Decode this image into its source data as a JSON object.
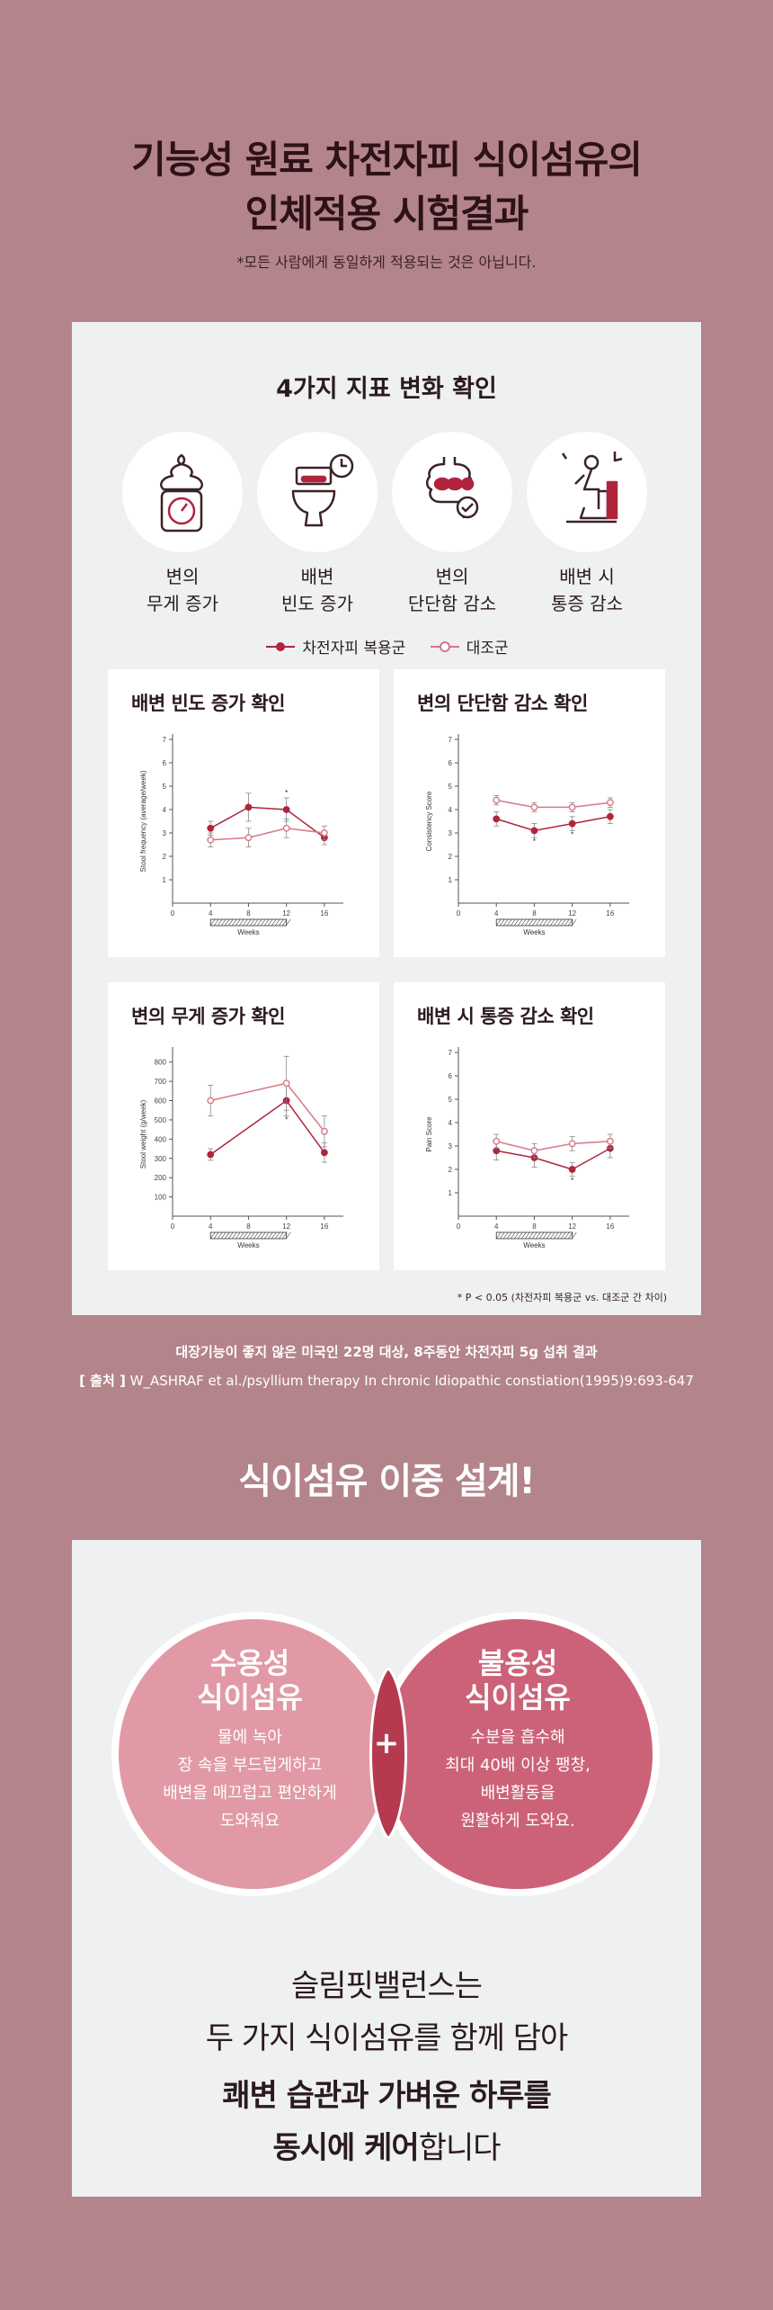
{
  "header": {
    "title_line1": "기능성 원료 차전자피 식이섬유의",
    "title_line2": "인체적용 시험결과",
    "note": "*모든 사람에게 동일하게 적용되는 것은 아닙니다."
  },
  "indicators": {
    "title": "4가지 지표 변화 확인",
    "items": [
      {
        "label": "변의\n무게 증가",
        "icon": "stool-weight-icon"
      },
      {
        "label": "배변\n빈도 증가",
        "icon": "toilet-clock-icon"
      },
      {
        "label": "변의\n단단함 감소",
        "icon": "intestine-check-icon"
      },
      {
        "label": "배변 시\n통증 감소",
        "icon": "person-toilet-icon"
      }
    ],
    "legend": {
      "treatment": "차전자피 복용군",
      "control": "대조군"
    },
    "colors": {
      "treatment": "#b0243c",
      "control": "#d77887"
    }
  },
  "chart_data": [
    {
      "type": "line",
      "title": "배변 빈도 증가 확인",
      "ylabel": "Stool frequency (average/week)",
      "xlabel": "Weeks",
      "x": [
        4,
        8,
        12,
        16
      ],
      "xticks": [
        0,
        4,
        8,
        12,
        16
      ],
      "yticks": [
        1,
        2,
        3,
        4,
        5,
        6,
        7
      ],
      "ylim": [
        0,
        7
      ],
      "xlim": [
        0,
        18
      ],
      "series": [
        {
          "name": "차전자피 복용군",
          "values": [
            3.2,
            4.1,
            4.0,
            2.8
          ],
          "err": [
            0.3,
            0.6,
            0.5,
            0.3
          ]
        },
        {
          "name": "대조군",
          "values": [
            2.7,
            2.8,
            3.2,
            3.0
          ],
          "err": [
            0.3,
            0.4,
            0.4,
            0.3
          ]
        }
      ],
      "significant_at": [
        12
      ]
    },
    {
      "type": "line",
      "title": "변의 단단함 감소 확인",
      "ylabel": "Consistency Score",
      "xlabel": "Weeks",
      "x": [
        4,
        8,
        12,
        16
      ],
      "xticks": [
        0,
        4,
        8,
        12,
        16
      ],
      "yticks": [
        1,
        2,
        3,
        4,
        5,
        6,
        7
      ],
      "ylim": [
        0,
        7
      ],
      "xlim": [
        0,
        18
      ],
      "series": [
        {
          "name": "차전자피 복용군",
          "values": [
            3.6,
            3.1,
            3.4,
            3.7
          ],
          "err": [
            0.3,
            0.3,
            0.3,
            0.3
          ]
        },
        {
          "name": "대조군",
          "values": [
            4.4,
            4.1,
            4.1,
            4.3
          ],
          "err": [
            0.2,
            0.2,
            0.2,
            0.2
          ]
        }
      ],
      "significant_at": [
        8,
        12
      ]
    },
    {
      "type": "line",
      "title": "변의 무게 증가 확인",
      "ylabel": "Stool weight (g/week)",
      "xlabel": "Weeks",
      "x": [
        4,
        12,
        16
      ],
      "xticks": [
        0,
        4,
        8,
        12,
        16
      ],
      "yticks": [
        100,
        200,
        300,
        400,
        500,
        600,
        700,
        800
      ],
      "ylim": [
        0,
        850
      ],
      "xlim": [
        0,
        18
      ],
      "series": [
        {
          "name": "차전자피 복용군",
          "values": [
            320,
            600,
            330
          ],
          "err": [
            30,
            80,
            50
          ]
        },
        {
          "name": "대조군",
          "values": [
            600,
            690,
            440
          ],
          "err": [
            80,
            140,
            80
          ]
        }
      ],
      "significant_at": [
        12
      ]
    },
    {
      "type": "line",
      "title": "배변 시 통증 감소 확인",
      "ylabel": "Pain Score",
      "xlabel": "Weeks",
      "x": [
        4,
        8,
        12,
        16
      ],
      "xticks": [
        0,
        4,
        8,
        12,
        16
      ],
      "yticks": [
        1,
        2,
        3,
        4,
        5,
        6,
        7
      ],
      "ylim": [
        0,
        7
      ],
      "xlim": [
        0,
        18
      ],
      "series": [
        {
          "name": "차전자피 복용군",
          "values": [
            2.8,
            2.5,
            2.0,
            2.9
          ],
          "err": [
            0.4,
            0.4,
            0.3,
            0.4
          ]
        },
        {
          "name": "대조군",
          "values": [
            3.2,
            2.8,
            3.1,
            3.2
          ],
          "err": [
            0.3,
            0.3,
            0.3,
            0.3
          ]
        }
      ],
      "significant_at": [
        12
      ]
    }
  ],
  "p_note": "* P < 0.05 (차전자피 복용군 vs. 대조군 간 차이)",
  "study": {
    "line1": "대장기능이 좋지 않은 미국인 22명 대상, 8주동안 차전자피 5g 섭취 결과",
    "source_label": "[ 출처 ]",
    "source_text": " W_ASHRAF et al./psyllium therapy In chronic Idiopathic constiation(1995)9:693-647"
  },
  "fiber": {
    "heading": "식이섬유 이중 설계!",
    "soluble": {
      "title": "수용성\n식이섬유",
      "body": "물에 녹아\n장 속을 부드럽게하고\n배변을 매끄럽고 편안하게\n도와줘요"
    },
    "insoluble": {
      "title": "불용성\n식이섬유",
      "body": "수분을 흡수해\n최대 40배 이상 팽창,\n배변활동을\n원활하게 도와요."
    },
    "plus": "+",
    "line1": "슬림핏밸런스는",
    "line2": "두 가지 식이섬유를 함께 담아",
    "line3": "쾌변 습관과 가벼운 하루를",
    "line4_bold": "동시에 케어",
    "line4_rest": "합니다"
  }
}
